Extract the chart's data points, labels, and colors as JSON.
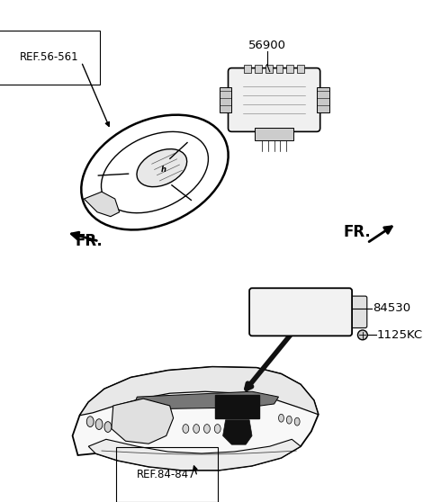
{
  "bg_color": "#ffffff",
  "line_color": "#000000",
  "label_56900": "56900",
  "label_84530": "84530",
  "label_1125KC": "1125KC",
  "label_ref56": "REF.56-561",
  "label_ref84": "REF.84-847",
  "label_fr_left": "FR.",
  "label_fr_right": "FR.",
  "figsize": [
    4.8,
    5.58
  ],
  "dpi": 100
}
